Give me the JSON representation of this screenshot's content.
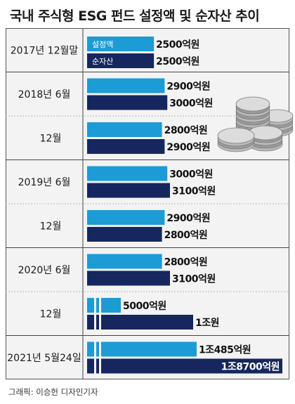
{
  "title": "국내 주식형 ESG 펀드 설정액 및 순자산 추이",
  "credit": "그래픽: 이승헌 디자인기자",
  "colors": {
    "설정액": "#1d9bd4",
    "순자산": "#15275e",
    "label_bg": "#ffffff"
  },
  "chart_data": {
    "type": "bar",
    "orientation": "horizontal",
    "unit": "억원",
    "categories": [
      "2017년 12월말",
      "2018년 6월",
      "12월",
      "2019년 6월",
      "12월",
      "2020년 6월",
      "12월",
      "2021년 5월24일"
    ],
    "series": [
      {
        "name": "설정액",
        "values": [
          2500,
          2900,
          2800,
          3000,
          2900,
          2800,
          5000,
          10485
        ],
        "labels": [
          "2500억원",
          "2900억원",
          "2800억원",
          "3000억원",
          "2900억원",
          "2800억원",
          "5000억원",
          "1조485억원"
        ]
      },
      {
        "name": "순자산",
        "values": [
          2500,
          3000,
          2900,
          3100,
          2800,
          3100,
          10000,
          18700
        ],
        "labels": [
          "2500억원",
          "3000억원",
          "2900억원",
          "3100억원",
          "2800억원",
          "3100억원",
          "1조원",
          "1조8700억원"
        ]
      }
    ],
    "axis_break": true
  }
}
